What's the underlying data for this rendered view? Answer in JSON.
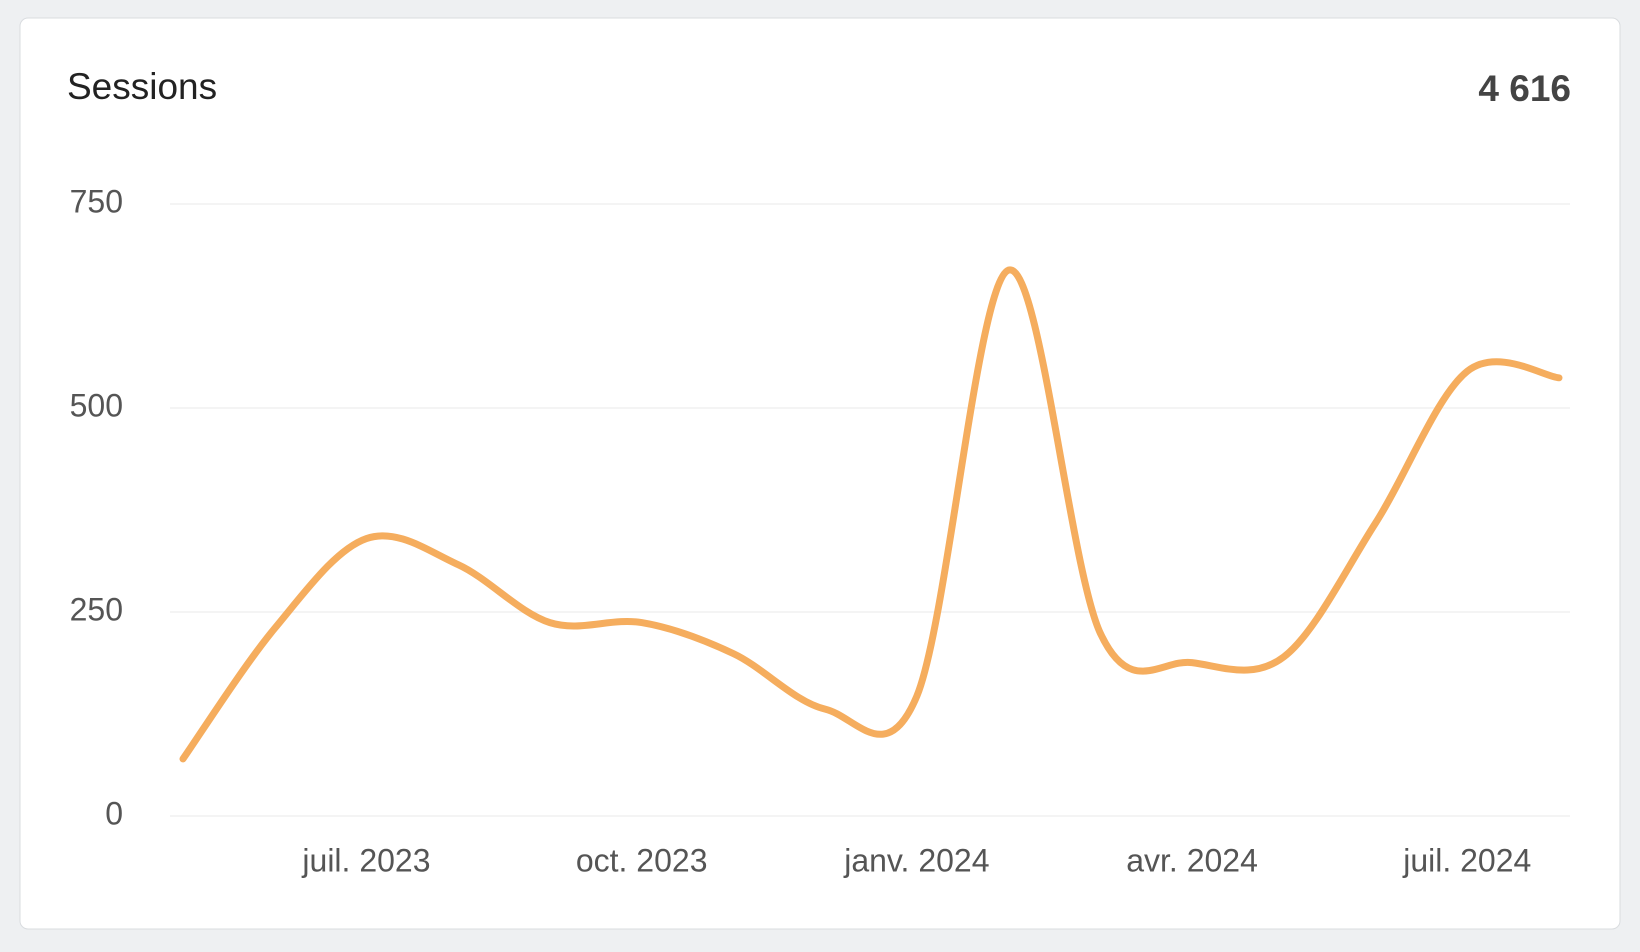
{
  "chart_data": {
    "type": "line",
    "title": "Sessions",
    "total": "4 616",
    "x": [
      "2023-05",
      "2023-06",
      "2023-07",
      "2023-08",
      "2023-09",
      "2023-10",
      "2023-11",
      "2023-12",
      "2024-01",
      "2024-02",
      "2024-03",
      "2024-04",
      "2024-05",
      "2024-06",
      "2024-07",
      "2024-08"
    ],
    "series": [
      {
        "name": "Sessions",
        "color": "#f5ad5e",
        "values": [
          70,
          230,
          340,
          308,
          237,
          237,
          199,
          131,
          147,
          669,
          224,
          188,
          195,
          359,
          545,
          537
        ]
      }
    ],
    "xlim": [
      "2023-05",
      "2024-08"
    ],
    "xticks": [
      {
        "value": "2023-07",
        "label": "juil. 2023"
      },
      {
        "value": "2023-10",
        "label": "oct. 2023"
      },
      {
        "value": "2024-01",
        "label": "janv. 2024"
      },
      {
        "value": "2024-04",
        "label": "avr. 2024"
      },
      {
        "value": "2024-07",
        "label": "juil. 2024"
      }
    ],
    "ylim": [
      0,
      750
    ],
    "yticks": [
      0,
      250,
      500,
      750
    ],
    "grid": true
  }
}
